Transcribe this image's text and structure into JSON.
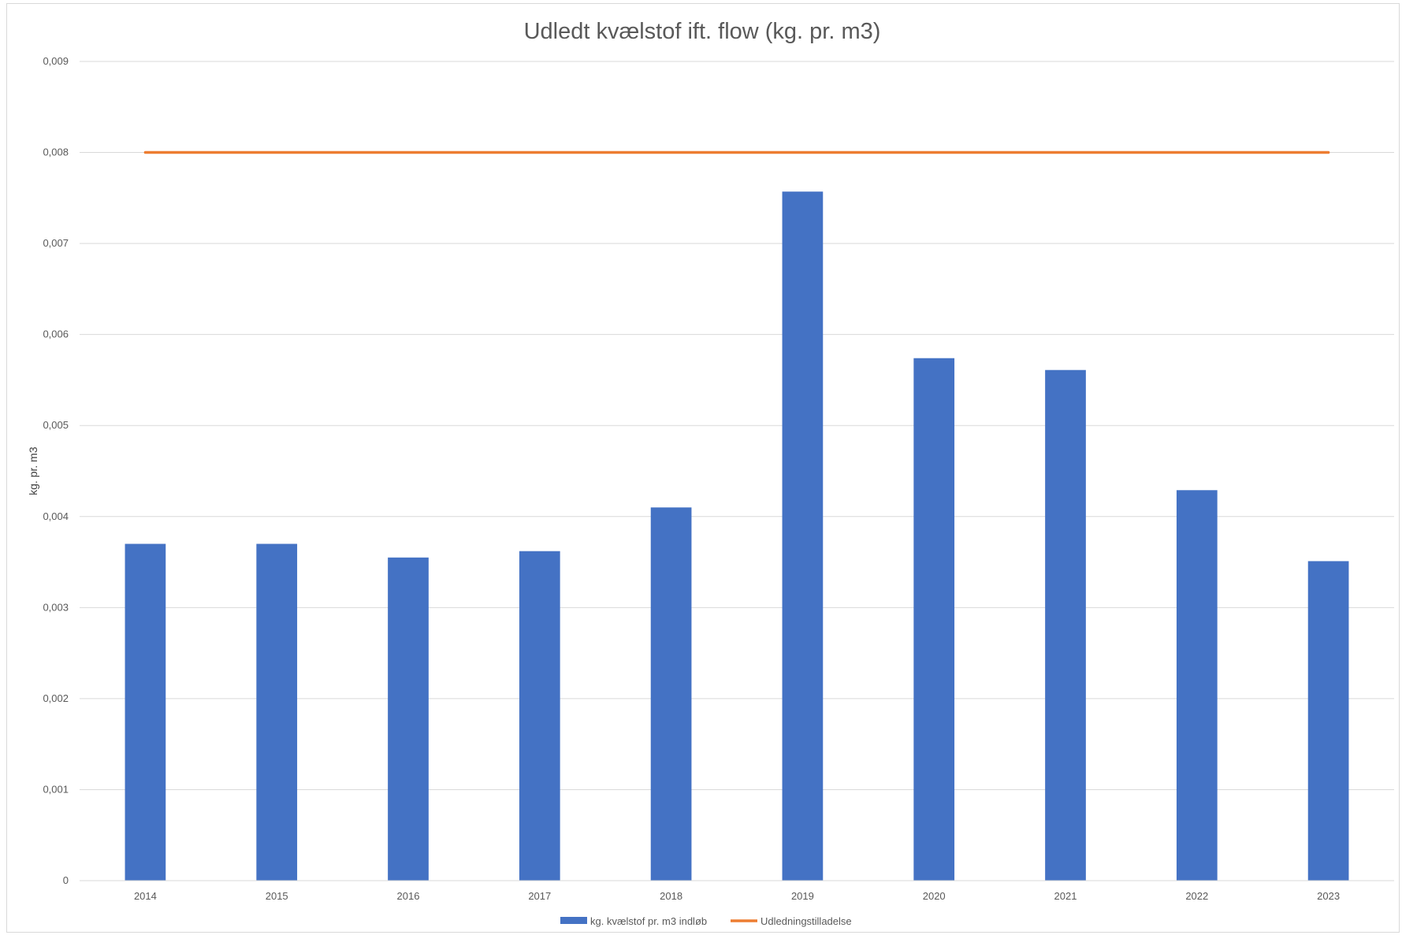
{
  "chart_data": {
    "type": "bar",
    "title": "Udledt kvælstof ift. flow (kg. pr. m3)",
    "xlabel": "",
    "ylabel": "kg. pr. m3",
    "categories": [
      "2014",
      "2015",
      "2016",
      "2017",
      "2018",
      "2019",
      "2020",
      "2021",
      "2022",
      "2023"
    ],
    "series": [
      {
        "name": "kg. kvælstof pr. m3 indløb",
        "type": "bar",
        "color": "#4472C4",
        "values": [
          0.0037,
          0.0037,
          0.00355,
          0.00362,
          0.0041,
          0.00757,
          0.00574,
          0.00561,
          0.00429,
          0.00351
        ]
      },
      {
        "name": "Udledningstilladelse",
        "type": "line",
        "color": "#ED7D31",
        "values": [
          0.008,
          0.008,
          0.008,
          0.008,
          0.008,
          0.008,
          0.008,
          0.008,
          0.008,
          0.008
        ]
      }
    ],
    "ylim": [
      0,
      0.009
    ],
    "yticks": [
      "0",
      "0,001",
      "0,002",
      "0,003",
      "0,004",
      "0,005",
      "0,006",
      "0,007",
      "0,008",
      "0,009"
    ],
    "grid": true,
    "legend_position": "bottom"
  }
}
